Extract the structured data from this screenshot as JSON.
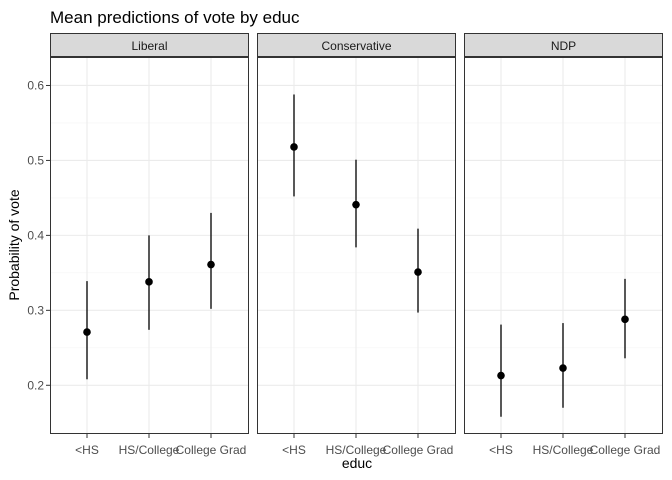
{
  "chart_data": {
    "type": "pointrange",
    "title": "Mean predictions of vote by educ",
    "xlabel": "educ",
    "ylabel": "Probability of vote",
    "ylim": [
      0.135,
      0.638
    ],
    "yticks": [
      "0.2",
      "0.3",
      "0.4",
      "0.5",
      "0.6"
    ],
    "categories": [
      "<HS",
      "HS/College",
      "College Grad"
    ],
    "panels": [
      {
        "name": "Liberal",
        "estimate": [
          0.271,
          0.338,
          0.361
        ],
        "lower": [
          0.208,
          0.274,
          0.302
        ],
        "upper": [
          0.339,
          0.4,
          0.43
        ]
      },
      {
        "name": "Conservative",
        "estimate": [
          0.518,
          0.441,
          0.351
        ],
        "lower": [
          0.452,
          0.384,
          0.297
        ],
        "upper": [
          0.588,
          0.501,
          0.409
        ]
      },
      {
        "name": "NDP",
        "estimate": [
          0.213,
          0.223,
          0.288
        ],
        "lower": [
          0.158,
          0.17,
          0.236
        ],
        "upper": [
          0.281,
          0.283,
          0.342
        ]
      }
    ],
    "colors": {
      "strip_fill": "#d9d9d9",
      "panel_border": "#333333",
      "grid_major": "#ebebeb",
      "grid_minor": "#f5f5f5",
      "point": "#000000"
    }
  }
}
